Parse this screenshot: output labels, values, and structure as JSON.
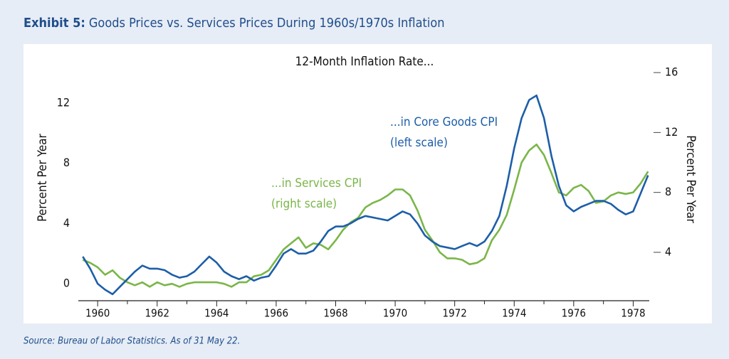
{
  "chart_data": {
    "type": "line",
    "title_prefix": "Exhibit 5:",
    "title": "Goods Prices vs. Services Prices During 1960s/1970s Inflation",
    "subtitle": "12-Month Inflation Rate...",
    "ylabel": "Percent Per Year",
    "y2label": "Percent Per Year",
    "source": "Source: Bureau of Labor Statistics. As of 31 May 22.",
    "x": [
      1959.5,
      1959.75,
      1960,
      1960.25,
      1960.5,
      1960.75,
      1961,
      1961.25,
      1961.5,
      1961.75,
      1962,
      1962.25,
      1962.5,
      1962.75,
      1963,
      1963.25,
      1963.5,
      1963.75,
      1964,
      1964.25,
      1964.5,
      1964.75,
      1965,
      1965.25,
      1965.5,
      1965.75,
      1966,
      1966.25,
      1966.5,
      1966.75,
      1967,
      1967.25,
      1967.5,
      1967.75,
      1968,
      1968.25,
      1968.5,
      1968.75,
      1969,
      1969.25,
      1969.5,
      1969.75,
      1970,
      1970.25,
      1970.5,
      1970.75,
      1971,
      1971.25,
      1971.5,
      1971.75,
      1972,
      1972.25,
      1972.5,
      1972.75,
      1973,
      1973.25,
      1973.5,
      1973.75,
      1974,
      1974.25,
      1974.5,
      1974.75,
      1975,
      1975.25,
      1975.5,
      1975.75,
      1976,
      1976.25,
      1976.5,
      1976.75,
      1977,
      1977.25,
      1977.5,
      1977.75,
      1978,
      1978.25,
      1978.5
    ],
    "series": [
      {
        "name": "...in Core Goods CPI",
        "note": "(left scale)",
        "color": "#1d5ea8",
        "axis": "y",
        "values": [
          1.8,
          1.0,
          0.0,
          -0.4,
          -0.7,
          -0.2,
          0.3,
          0.8,
          1.2,
          1.0,
          1.0,
          0.9,
          0.6,
          0.4,
          0.5,
          0.8,
          1.3,
          1.8,
          1.4,
          0.8,
          0.5,
          0.3,
          0.5,
          0.2,
          0.4,
          0.5,
          1.2,
          2.0,
          2.3,
          2.0,
          2.0,
          2.2,
          2.8,
          3.5,
          3.8,
          3.8,
          4.0,
          4.3,
          4.5,
          4.4,
          4.3,
          4.2,
          4.5,
          4.8,
          4.6,
          4.0,
          3.2,
          2.8,
          2.5,
          2.4,
          2.3,
          2.5,
          2.7,
          2.5,
          2.8,
          3.5,
          4.5,
          6.5,
          9.0,
          11.0,
          12.2,
          12.5,
          11.0,
          8.5,
          6.5,
          5.2,
          4.8,
          5.1,
          5.3,
          5.5,
          5.5,
          5.3,
          4.9,
          4.6,
          4.8,
          6.0,
          7.2
        ]
      },
      {
        "name": "...in Services CPI",
        "note": "(right scale)",
        "color": "#7ab648",
        "axis": "y2",
        "values": [
          3.5,
          3.3,
          3.0,
          2.5,
          2.8,
          2.3,
          2.0,
          1.8,
          2.0,
          1.7,
          2.0,
          1.8,
          1.9,
          1.7,
          1.9,
          2.0,
          2.0,
          2.0,
          2.0,
          1.9,
          1.7,
          2.0,
          2.0,
          2.4,
          2.5,
          2.8,
          3.5,
          4.2,
          4.6,
          5.0,
          4.3,
          4.6,
          4.5,
          4.2,
          4.8,
          5.5,
          6.0,
          6.3,
          7.0,
          7.3,
          7.5,
          7.8,
          8.2,
          8.2,
          7.8,
          6.8,
          5.5,
          4.8,
          4.0,
          3.6,
          3.6,
          3.5,
          3.2,
          3.3,
          3.6,
          4.8,
          5.5,
          6.5,
          8.2,
          10.0,
          10.8,
          11.2,
          10.5,
          9.3,
          8.0,
          7.8,
          8.3,
          8.5,
          8.1,
          7.3,
          7.4,
          7.8,
          8.0,
          7.9,
          8.0,
          8.6,
          9.4
        ]
      }
    ],
    "xlim": [
      1959.35,
      1978.54
    ],
    "xticks": [
      1960,
      1962,
      1964,
      1966,
      1968,
      1970,
      1972,
      1974,
      1976,
      1978
    ],
    "x_minor_ticks": [
      1961,
      1963,
      1965,
      1967,
      1969,
      1971,
      1973,
      1975,
      1977
    ],
    "ylim": [
      -1.13,
      14.12
    ],
    "yticks": [
      0,
      4,
      8,
      12
    ],
    "y2lim": [
      0.77,
      16.1
    ],
    "y2ticks": [
      4,
      8,
      12,
      16
    ],
    "grid": false
  }
}
